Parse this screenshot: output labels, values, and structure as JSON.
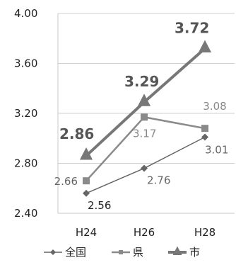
{
  "chart_data": {
    "type": "line",
    "categories": [
      "H24",
      "H26",
      "H28"
    ],
    "ylim": [
      2.4,
      4.0
    ],
    "yticks": [
      "2.40",
      "2.80",
      "3.20",
      "3.60",
      "4.00"
    ],
    "grid": true,
    "legend_position": "bottom",
    "series": [
      {
        "name": "全国",
        "values": [
          2.56,
          2.76,
          3.01
        ],
        "labels": [
          "2.56",
          "2.76",
          "3.01"
        ],
        "color": "#666666",
        "marker": "diamond"
      },
      {
        "name": "県",
        "values": [
          2.66,
          3.17,
          3.08
        ],
        "labels": [
          "2.66",
          "3.17",
          "3.08"
        ],
        "color": "#8a8a8a",
        "marker": "square"
      },
      {
        "name": "市",
        "values": [
          2.86,
          3.29,
          3.72
        ],
        "labels": [
          "2.86",
          "3.29",
          "3.72"
        ],
        "color": "#777777",
        "marker": "triangle"
      }
    ]
  }
}
